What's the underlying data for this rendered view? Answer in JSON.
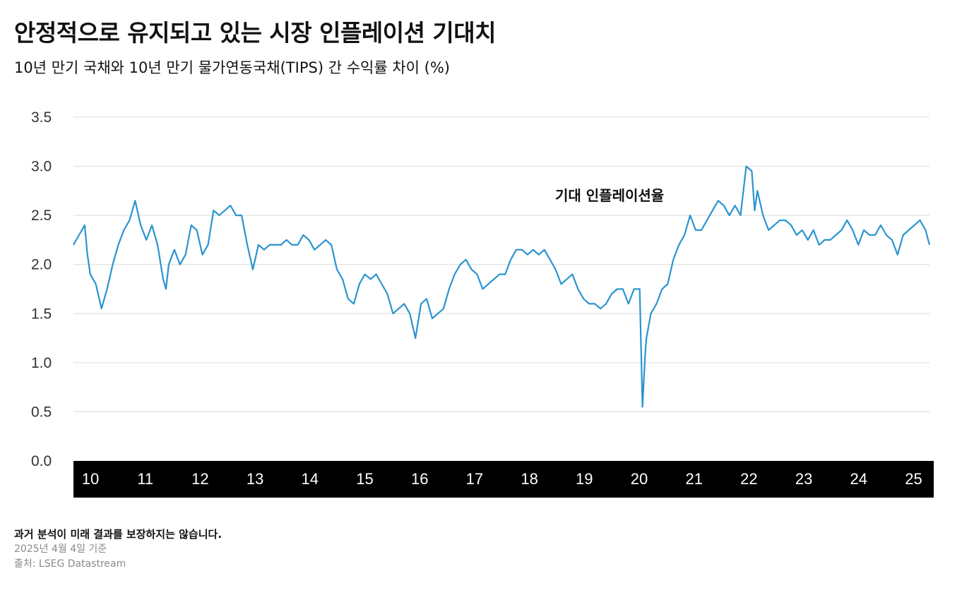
{
  "header": {
    "title": "안정적으로 유지되고 있는 시장 인플레이션 기대치",
    "subtitle": "10년 만기 국채와 10년 만기 물가연동국채(TIPS) 간 수익률 차이 (%)"
  },
  "footer": {
    "disclaimer": "과거 분석이 미래 결과를 보장하지는 않습니다.",
    "as_of": "2025년 4월 4일 기준",
    "source": "출처: LSEG Datastream"
  },
  "colors": {
    "line": "#2b94cf",
    "grid": "#dcdcdc",
    "axis_band": "#000000",
    "axis_text": "#ffffff"
  },
  "chart_data": {
    "type": "line",
    "annotation": "기대 인플레이션율",
    "ylim": [
      0,
      3.5
    ],
    "y_ticks": [
      "0.0",
      "0.5",
      "1.0",
      "1.5",
      "2.0",
      "2.5",
      "3.0",
      "3.5"
    ],
    "x_ticks": [
      "10",
      "11",
      "12",
      "13",
      "14",
      "15",
      "16",
      "17",
      "18",
      "19",
      "20",
      "21",
      "22",
      "23",
      "24",
      "25"
    ],
    "xlim": [
      2010.0,
      2025.27
    ],
    "grid": true,
    "series": [
      {
        "x": [
          2010.0,
          2010.1,
          2010.2,
          2010.25,
          2010.3,
          2010.4,
          2010.5,
          2010.6,
          2010.7,
          2010.8,
          2010.9,
          2011.0,
          2011.1,
          2011.2,
          2011.3,
          2011.4,
          2011.5,
          2011.6,
          2011.65,
          2011.7,
          2011.8,
          2011.9,
          2012.0,
          2012.1,
          2012.2,
          2012.3,
          2012.4,
          2012.5,
          2012.6,
          2012.7,
          2012.8,
          2012.9,
          2013.0,
          2013.1,
          2013.2,
          2013.3,
          2013.4,
          2013.5,
          2013.6,
          2013.7,
          2013.8,
          2013.9,
          2014.0,
          2014.1,
          2014.2,
          2014.3,
          2014.4,
          2014.5,
          2014.6,
          2014.7,
          2014.8,
          2014.9,
          2015.0,
          2015.1,
          2015.2,
          2015.3,
          2015.4,
          2015.5,
          2015.6,
          2015.7,
          2015.8,
          2015.9,
          2016.0,
          2016.1,
          2016.2,
          2016.3,
          2016.4,
          2016.5,
          2016.6,
          2016.7,
          2016.8,
          2016.9,
          2017.0,
          2017.1,
          2017.2,
          2017.3,
          2017.4,
          2017.5,
          2017.6,
          2017.7,
          2017.8,
          2017.9,
          2018.0,
          2018.1,
          2018.2,
          2018.3,
          2018.4,
          2018.5,
          2018.6,
          2018.7,
          2018.8,
          2018.9,
          2019.0,
          2019.1,
          2019.2,
          2019.3,
          2019.4,
          2019.5,
          2019.6,
          2019.7,
          2019.8,
          2019.9,
          2020.0,
          2020.1,
          2020.15,
          2020.2,
          2020.22,
          2020.3,
          2020.4,
          2020.5,
          2020.6,
          2020.7,
          2020.8,
          2020.9,
          2021.0,
          2021.1,
          2021.2,
          2021.3,
          2021.4,
          2021.5,
          2021.6,
          2021.7,
          2021.8,
          2021.9,
          2022.0,
          2022.1,
          2022.15,
          2022.2,
          2022.3,
          2022.4,
          2022.5,
          2022.6,
          2022.7,
          2022.8,
          2022.9,
          2023.0,
          2023.1,
          2023.2,
          2023.3,
          2023.4,
          2023.5,
          2023.6,
          2023.7,
          2023.8,
          2023.9,
          2024.0,
          2024.1,
          2024.2,
          2024.3,
          2024.4,
          2024.5,
          2024.6,
          2024.7,
          2024.8,
          2024.9,
          2025.0,
          2025.1,
          2025.2,
          2025.27
        ],
        "y": [
          2.2,
          2.3,
          2.4,
          2.1,
          1.9,
          1.8,
          1.55,
          1.75,
          2.0,
          2.2,
          2.35,
          2.45,
          2.65,
          2.4,
          2.25,
          2.4,
          2.2,
          1.85,
          1.75,
          2.0,
          2.15,
          2.0,
          2.1,
          2.4,
          2.35,
          2.1,
          2.2,
          2.55,
          2.5,
          2.55,
          2.6,
          2.5,
          2.5,
          2.2,
          1.95,
          2.2,
          2.15,
          2.2,
          2.2,
          2.2,
          2.25,
          2.2,
          2.2,
          2.3,
          2.25,
          2.15,
          2.2,
          2.25,
          2.2,
          1.95,
          1.85,
          1.65,
          1.6,
          1.8,
          1.9,
          1.85,
          1.9,
          1.8,
          1.7,
          1.5,
          1.55,
          1.6,
          1.5,
          1.25,
          1.6,
          1.65,
          1.45,
          1.5,
          1.55,
          1.75,
          1.9,
          2.0,
          2.05,
          1.95,
          1.9,
          1.75,
          1.8,
          1.85,
          1.9,
          1.9,
          2.05,
          2.15,
          2.15,
          2.1,
          2.15,
          2.1,
          2.15,
          2.05,
          1.95,
          1.8,
          1.85,
          1.9,
          1.75,
          1.65,
          1.6,
          1.6,
          1.55,
          1.6,
          1.7,
          1.75,
          1.75,
          1.6,
          1.75,
          1.75,
          0.55,
          1.1,
          1.25,
          1.5,
          1.6,
          1.75,
          1.8,
          2.05,
          2.2,
          2.3,
          2.5,
          2.35,
          2.35,
          2.45,
          2.55,
          2.65,
          2.6,
          2.5,
          2.6,
          2.5,
          3.0,
          2.95,
          2.55,
          2.75,
          2.5,
          2.35,
          2.4,
          2.45,
          2.45,
          2.4,
          2.3,
          2.35,
          2.25,
          2.35,
          2.2,
          2.25,
          2.25,
          2.3,
          2.35,
          2.45,
          2.35,
          2.2,
          2.35,
          2.3,
          2.3,
          2.4,
          2.3,
          2.25,
          2.1,
          2.3,
          2.35,
          2.4,
          2.45,
          2.35,
          2.2
        ]
      }
    ]
  }
}
